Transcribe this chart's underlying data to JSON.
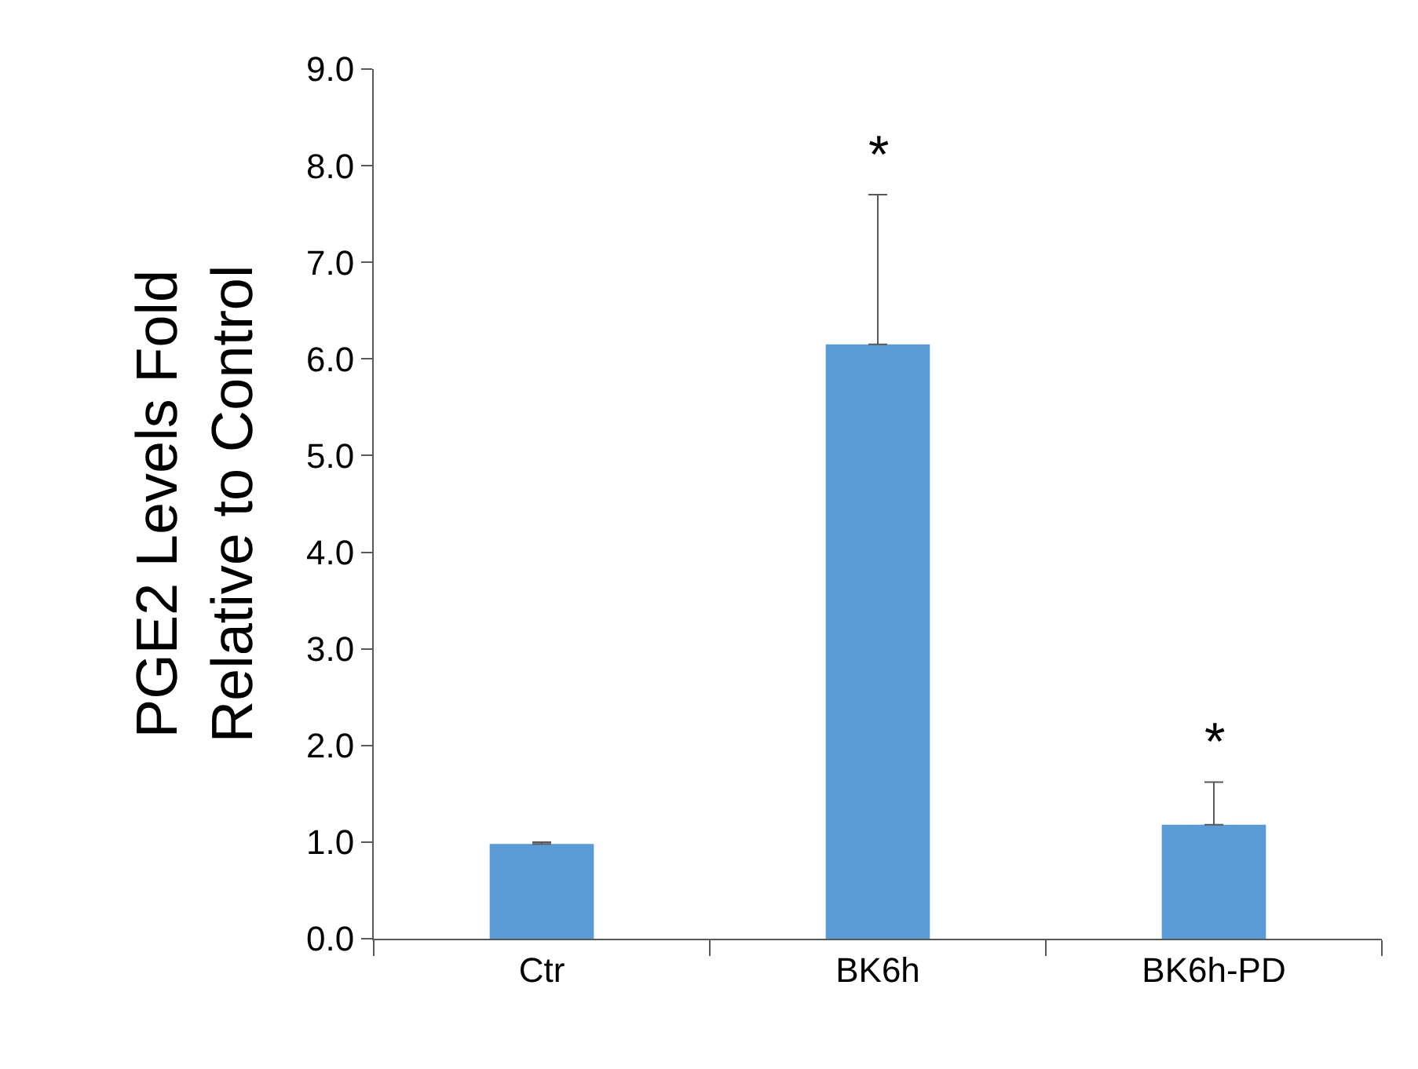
{
  "chart_data": {
    "type": "bar",
    "ylabel": "PGE2 Levels Fold\nRelative to Control",
    "categories": [
      "Ctr",
      "BK6h",
      "BK6h-PD"
    ],
    "values": [
      0.98,
      6.15,
      1.18
    ],
    "errors": [
      [
        0.98,
        1.0
      ],
      [
        6.15,
        7.7
      ],
      [
        1.18,
        1.62
      ]
    ],
    "color": "#5b9bd5",
    "ylim": [
      0,
      9
    ],
    "yticks": [
      {
        "value": 0,
        "label": "0.0"
      },
      {
        "value": 1,
        "label": "1.0"
      },
      {
        "value": 2,
        "label": "2.0"
      },
      {
        "value": 3,
        "label": "3.0"
      },
      {
        "value": 4,
        "label": "4.0"
      },
      {
        "value": 5,
        "label": "5.0"
      },
      {
        "value": 6,
        "label": "6.0"
      },
      {
        "value": 7,
        "label": "7.0"
      },
      {
        "value": 8,
        "label": "8.0"
      },
      {
        "value": 9,
        "label": "9.0"
      }
    ],
    "annotations": [
      {
        "text": "*",
        "x": "BK6h",
        "y": 7.7
      },
      {
        "text": "*",
        "x": "BK6h-PD",
        "y": 1.62
      }
    ]
  }
}
